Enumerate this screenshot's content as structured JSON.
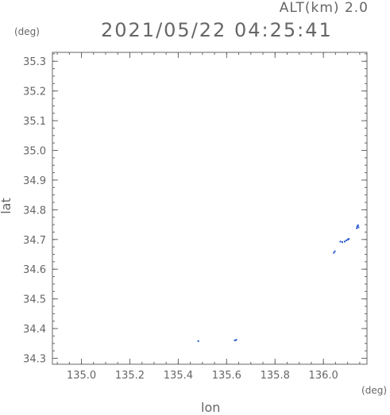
{
  "header": {
    "altitude": "ALT(km) 2.0",
    "timestamp": "2021/05/22 04:25:41",
    "y_unit": "(deg)",
    "x_unit": "(deg)"
  },
  "chart_data": {
    "type": "scatter",
    "title": "2021/05/22 04:25:41",
    "xlabel": "lon",
    "ylabel": "lat",
    "xlim": [
      134.88,
      136.18
    ],
    "ylim": [
      34.28,
      35.33
    ],
    "xticks": [
      "135.0",
      "135.2",
      "135.4",
      "135.6",
      "135.8",
      "136.0"
    ],
    "xtick_values": [
      135.0,
      135.2,
      135.4,
      135.6,
      135.8,
      136.0
    ],
    "yticks": [
      "34.3",
      "34.4",
      "34.5",
      "34.6",
      "34.7",
      "34.8",
      "34.9",
      "35.0",
      "35.1",
      "35.2",
      "35.3"
    ],
    "ytick_values": [
      34.3,
      34.4,
      34.5,
      34.6,
      34.7,
      34.8,
      34.9,
      35.0,
      35.1,
      35.2,
      35.3
    ],
    "grid": false,
    "series": [
      {
        "color": "#2255cc",
        "points": [
          [
            135.483,
            34.358
          ],
          [
            135.634,
            34.36
          ],
          [
            135.64,
            34.362
          ],
          [
            136.043,
            34.655
          ],
          [
            136.047,
            34.66
          ],
          [
            136.07,
            34.693
          ],
          [
            136.078,
            34.691
          ],
          [
            136.088,
            34.693
          ],
          [
            136.095,
            34.697
          ],
          [
            136.101,
            34.7
          ],
          [
            136.105,
            34.702
          ],
          [
            136.138,
            34.738
          ],
          [
            136.14,
            34.744
          ],
          [
            136.143,
            34.748
          ],
          [
            136.145,
            34.741
          ]
        ]
      }
    ]
  }
}
